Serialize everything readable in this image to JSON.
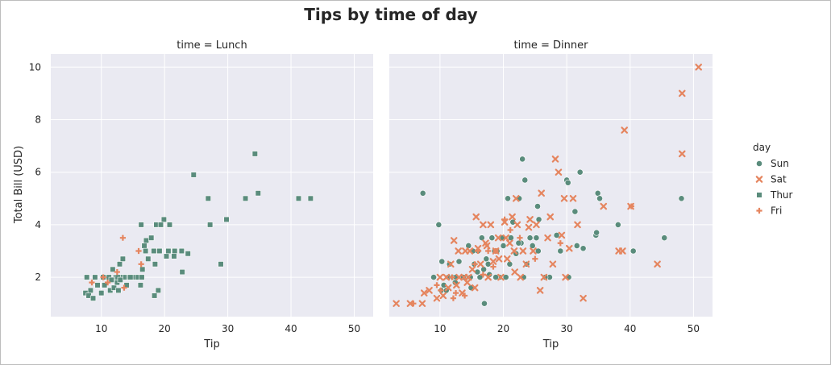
{
  "chart_data": {
    "type": "scatter",
    "title": "Tips by time of day",
    "ylabel": "Total Bill (USD)",
    "xlabel": "Tip",
    "xlim": [
      2,
      53
    ],
    "ylim": [
      0.5,
      10.5
    ],
    "xticks": [
      "10",
      "20",
      "30",
      "40",
      "50"
    ],
    "yticks": [
      "2",
      "4",
      "6",
      "8",
      "10"
    ],
    "grid": true,
    "legend": {
      "title": "day",
      "placement": "right",
      "entries": [
        {
          "name": "Sun",
          "color": "#5a8c7c",
          "marker": "circle"
        },
        {
          "name": "Sat",
          "color": "#e5855f",
          "marker": "x"
        },
        {
          "name": "Thur",
          "color": "#5a8c7c",
          "marker": "square"
        },
        {
          "name": "Fri",
          "color": "#e5855f",
          "marker": "plus"
        }
      ]
    },
    "panels": [
      {
        "title": "time = Lunch",
        "series": [
          {
            "name": "Thur",
            "points": [
              [
                7.5,
                1.4
              ],
              [
                7.7,
                2.0
              ],
              [
                8.0,
                1.3
              ],
              [
                8.3,
                1.5
              ],
              [
                8.7,
                1.2
              ],
              [
                9.4,
                1.7
              ],
              [
                10.0,
                1.4
              ],
              [
                10.5,
                1.7
              ],
              [
                10.8,
                2.0
              ],
              [
                11.2,
                2.0
              ],
              [
                11.4,
                1.5
              ],
              [
                11.8,
                2.3
              ],
              [
                12.0,
                1.6
              ],
              [
                12.3,
                2.0
              ],
              [
                12.5,
                1.8
              ],
              [
                12.9,
                2.5
              ],
              [
                13.2,
                2.0
              ],
              [
                13.4,
                2.7
              ],
              [
                13.8,
                2.0
              ],
              [
                14.0,
                1.7
              ],
              [
                14.4,
                2.0
              ],
              [
                14.8,
                2.0
              ],
              [
                15.3,
                2.0
              ],
              [
                15.8,
                2.0
              ],
              [
                16.2,
                1.7
              ],
              [
                16.5,
                2.3
              ],
              [
                16.8,
                3.2
              ],
              [
                17.1,
                3.4
              ],
              [
                17.4,
                2.7
              ],
              [
                17.9,
                3.5
              ],
              [
                18.3,
                3.0
              ],
              [
                18.7,
                4.0
              ],
              [
                19.2,
                3.0
              ],
              [
                19.4,
                4.0
              ],
              [
                19.9,
                4.2
              ],
              [
                20.3,
                2.8
              ],
              [
                20.8,
                4.0
              ],
              [
                21.6,
                3.0
              ],
              [
                22.7,
                3.0
              ],
              [
                23.7,
                2.9
              ],
              [
                24.6,
                5.9
              ],
              [
                26.9,
                5.0
              ],
              [
                27.2,
                4.0
              ],
              [
                28.9,
                2.5
              ],
              [
                29.8,
                4.2
              ],
              [
                32.8,
                5.0
              ],
              [
                34.3,
                6.7
              ],
              [
                34.8,
                5.2
              ],
              [
                41.2,
                5.0
              ],
              [
                43.1,
                5.0
              ],
              [
                16.4,
                2.0
              ],
              [
                18.4,
                1.3
              ],
              [
                19.0,
                1.5
              ],
              [
                22.8,
                2.2
              ],
              [
                16.3,
                4.0
              ],
              [
                9.0,
                2.0
              ],
              [
                12.6,
                2.0
              ],
              [
                21.5,
                2.8
              ],
              [
                17.0,
                3.0
              ],
              [
                18.5,
                2.5
              ],
              [
                20.6,
                3.0
              ],
              [
                10.3,
                2.0
              ],
              [
                14.6,
                2.0
              ],
              [
                11.6,
                1.9
              ],
              [
                12.7,
                1.5
              ],
              [
                13.0,
                1.9
              ]
            ]
          },
          {
            "name": "Fri",
            "points": [
              [
                8.5,
                1.8
              ],
              [
                10.3,
                2.0
              ],
              [
                11.0,
                1.8
              ],
              [
                13.4,
                3.5
              ],
              [
                13.6,
                1.6
              ],
              [
                15.9,
                3.0
              ],
              [
                16.3,
                2.5
              ],
              [
                12.5,
                2.2
              ]
            ]
          }
        ]
      },
      {
        "title": "time = Dinner",
        "series": [
          {
            "name": "Sun",
            "points": [
              [
                7.3,
                5.2
              ],
              [
                9.0,
                2.0
              ],
              [
                9.8,
                4.0
              ],
              [
                10.2,
                1.5
              ],
              [
                10.3,
                2.6
              ],
              [
                10.6,
                1.7
              ],
              [
                11.3,
                2.0
              ],
              [
                12.0,
                2.0
              ],
              [
                12.5,
                2.0
              ],
              [
                13.0,
                2.6
              ],
              [
                13.5,
                2.0
              ],
              [
                14.1,
                2.0
              ],
              [
                14.5,
                3.2
              ],
              [
                14.8,
                2.0
              ],
              [
                15.4,
                2.5
              ],
              [
                16.0,
                3.0
              ],
              [
                16.3,
                2.0
              ],
              [
                16.6,
                3.5
              ],
              [
                17.0,
                1.0
              ],
              [
                17.3,
                2.7
              ],
              [
                17.6,
                2.5
              ],
              [
                18.2,
                3.5
              ],
              [
                18.6,
                3.0
              ],
              [
                19.4,
                2.0
              ],
              [
                19.9,
                3.5
              ],
              [
                20.4,
                2.0
              ],
              [
                20.7,
                5.0
              ],
              [
                21.2,
                3.5
              ],
              [
                21.5,
                4.1
              ],
              [
                22.0,
                2.9
              ],
              [
                22.5,
                5.0
              ],
              [
                22.8,
                3.3
              ],
              [
                23.0,
                6.5
              ],
              [
                23.4,
                5.7
              ],
              [
                23.7,
                2.5
              ],
              [
                24.2,
                3.5
              ],
              [
                25.2,
                3.5
              ],
              [
                25.4,
                4.7
              ],
              [
                25.5,
                3.0
              ],
              [
                25.6,
                4.2
              ],
              [
                27.3,
                2.0
              ],
              [
                28.4,
                3.6
              ],
              [
                29.0,
                3.0
              ],
              [
                30.0,
                5.7
              ],
              [
                30.2,
                5.6
              ],
              [
                30.3,
                2.0
              ],
              [
                31.3,
                4.5
              ],
              [
                31.6,
                3.2
              ],
              [
                32.1,
                6.0
              ],
              [
                32.6,
                3.1
              ],
              [
                34.6,
                3.6
              ],
              [
                34.7,
                3.7
              ],
              [
                34.9,
                5.2
              ],
              [
                35.2,
                5.0
              ],
              [
                38.1,
                4.0
              ],
              [
                40.5,
                3.0
              ],
              [
                45.4,
                3.5
              ],
              [
                48.1,
                5.0
              ],
              [
                22.4,
                3.3
              ],
              [
                18.8,
                2.0
              ],
              [
                15.9,
                2.2
              ],
              [
                12.4,
                1.8
              ],
              [
                11.5,
                2.5
              ],
              [
                26.6,
                2.0
              ],
              [
                19.0,
                3.0
              ],
              [
                20.0,
                3.2
              ],
              [
                14.9,
                1.6
              ],
              [
                17.8,
                2.1
              ],
              [
                21.0,
                2.5
              ],
              [
                24.6,
                3.2
              ],
              [
                23.2,
                2.0
              ],
              [
                16.9,
                2.3
              ],
              [
                13.7,
                2.0
              ],
              [
                15.2,
                3.0
              ],
              [
                11.0,
                1.5
              ]
            ]
          },
          {
            "name": "Sat",
            "points": [
              [
                3.1,
                1.0
              ],
              [
                5.3,
                1.0
              ],
              [
                7.2,
                1.0
              ],
              [
                7.5,
                1.4
              ],
              [
                8.3,
                1.5
              ],
              [
                9.5,
                1.2
              ],
              [
                10.0,
                2.0
              ],
              [
                10.5,
                1.3
              ],
              [
                11.0,
                2.0
              ],
              [
                11.3,
                1.6
              ],
              [
                11.7,
                2.5
              ],
              [
                12.2,
                3.4
              ],
              [
                12.6,
                1.7
              ],
              [
                13.0,
                2.0
              ],
              [
                13.5,
                1.4
              ],
              [
                13.8,
                2.0
              ],
              [
                14.0,
                3.0
              ],
              [
                14.3,
                1.8
              ],
              [
                14.7,
                3.0
              ],
              [
                15.1,
                2.3
              ],
              [
                15.5,
                1.6
              ],
              [
                16.0,
                3.1
              ],
              [
                16.4,
                2.5
              ],
              [
                16.8,
                4.0
              ],
              [
                17.2,
                3.3
              ],
              [
                17.6,
                2.0
              ],
              [
                18.0,
                4.0
              ],
              [
                18.4,
                2.6
              ],
              [
                18.8,
                3.0
              ],
              [
                19.2,
                3.5
              ],
              [
                19.6,
                2.0
              ],
              [
                20.2,
                4.1
              ],
              [
                20.6,
                2.7
              ],
              [
                21.0,
                3.3
              ],
              [
                21.4,
                4.3
              ],
              [
                21.8,
                2.2
              ],
              [
                22.2,
                4.0
              ],
              [
                22.7,
                2.0
              ],
              [
                23.1,
                3.0
              ],
              [
                23.6,
                2.5
              ],
              [
                24.2,
                4.2
              ],
              [
                24.7,
                3.0
              ],
              [
                25.2,
                4.0
              ],
              [
                25.8,
                1.5
              ],
              [
                26.4,
                2.0
              ],
              [
                27.0,
                3.5
              ],
              [
                27.8,
                2.5
              ],
              [
                28.2,
                6.5
              ],
              [
                28.7,
                6.0
              ],
              [
                29.2,
                3.6
              ],
              [
                29.8,
                2.0
              ],
              [
                30.4,
                3.1
              ],
              [
                31.0,
                5.0
              ],
              [
                31.7,
                4.0
              ],
              [
                32.6,
                1.2
              ],
              [
                35.8,
                4.7
              ],
              [
                38.2,
                3.0
              ],
              [
                38.8,
                3.0
              ],
              [
                39.1,
                7.6
              ],
              [
                40.1,
                4.7
              ],
              [
                44.3,
                2.5
              ],
              [
                48.2,
                9.0
              ],
              [
                48.2,
                6.7
              ],
              [
                50.8,
                10.0
              ],
              [
                26.0,
                5.2
              ],
              [
                27.4,
                4.3
              ],
              [
                15.7,
                4.3
              ],
              [
                19.3,
                2.7
              ],
              [
                17.4,
                3.2
              ],
              [
                20.4,
                3.5
              ],
              [
                22.0,
                5.0
              ],
              [
                24.0,
                3.9
              ],
              [
                12.9,
                3.0
              ],
              [
                14.5,
                2.0
              ],
              [
                21.7,
                3.0
              ],
              [
                29.6,
                5.0
              ]
            ]
          },
          {
            "name": "Fri",
            "points": [
              [
                5.8,
                1.0
              ],
              [
                10.1,
                1.5
              ],
              [
                11.9,
                2.0
              ],
              [
                12.5,
                1.4
              ],
              [
                13.9,
                1.3
              ],
              [
                15.5,
                2.5
              ],
              [
                16.0,
                3.0
              ],
              [
                16.8,
                2.1
              ],
              [
                17.6,
                3.0
              ],
              [
                18.4,
                2.4
              ],
              [
                20.2,
                4.2
              ],
              [
                22.6,
                3.5
              ],
              [
                25.0,
                2.7
              ],
              [
                29.0,
                3.3
              ],
              [
                40.2,
                4.7
              ],
              [
                12.1,
                1.2
              ],
              [
                9.5,
                1.7
              ],
              [
                18.8,
                3.0
              ],
              [
                21.1,
                3.8
              ]
            ]
          }
        ]
      }
    ]
  }
}
